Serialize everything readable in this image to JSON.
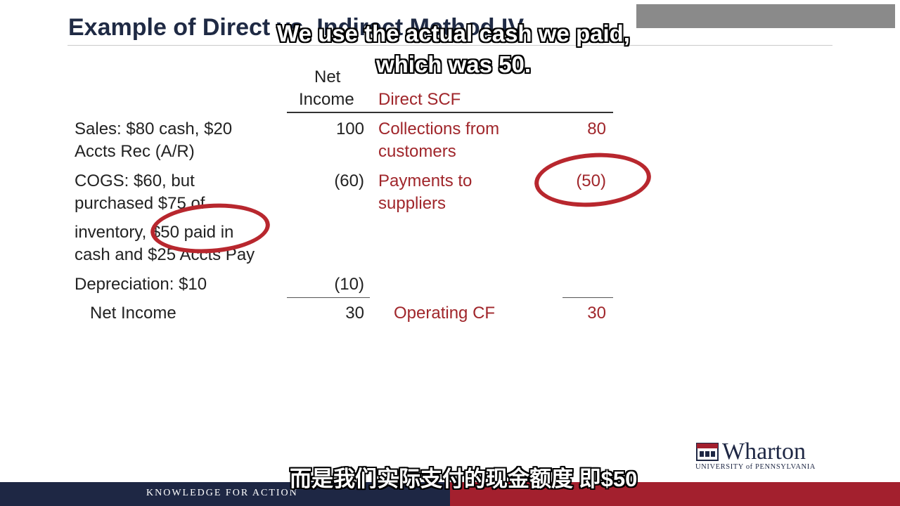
{
  "slide": {
    "title": "Example of Direct vs. Indirect Method IV",
    "columns": {
      "net_income_line1": "Net",
      "net_income_line2": "Income",
      "direct_scf": "Direct SCF"
    },
    "rows": {
      "sales": {
        "label_line1": "Sales: $80 cash, $20",
        "label_line2": "Accts Rec (A/R)",
        "net_income": "100",
        "direct_label_line1": "Collections from",
        "direct_label_line2": "customers",
        "direct_value": "80"
      },
      "cogs": {
        "label_line1": "COGS: $60, but",
        "label_line2": "purchased $75 of",
        "label_line3": "inventory, $50 paid in",
        "label_line4": "cash and $25 Accts Pay",
        "net_income": "(60)",
        "direct_label_line1": "Payments to",
        "direct_label_line2": "suppliers",
        "direct_value": "(50)"
      },
      "depreciation": {
        "label": "Depreciation: $10",
        "net_income": "(10)"
      },
      "totals": {
        "label": "Net Income",
        "net_income": "30",
        "direct_label": "Operating CF",
        "direct_value": "30"
      }
    }
  },
  "subtitles": {
    "english_line1": "We use the actual cash we paid,",
    "english_line2": "which was 50.",
    "chinese": "而是我们实际支付的现金额度 即$50"
  },
  "footer": {
    "tagline": "KNOWLEDGE FOR ACTION"
  },
  "logo": {
    "name": "Wharton",
    "subtitle": "UNIVERSITY of PENNSYLVANIA"
  },
  "colors": {
    "accent_red": "#a0262b",
    "navy": "#1e2744",
    "footer_red": "#a3202e"
  }
}
